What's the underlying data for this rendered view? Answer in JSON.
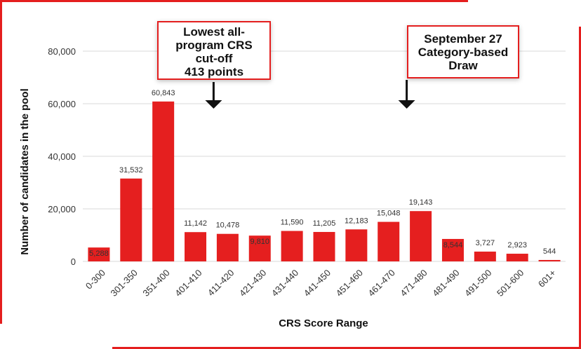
{
  "colors": {
    "bar": "#e51f1f",
    "frame": "#e41e1e",
    "grid": "#d9d9d9",
    "tick_text": "#333333",
    "axis_title": "#111111"
  },
  "chart_data": {
    "type": "bar",
    "categories": [
      "0-300",
      "301-350",
      "351-400",
      "401-410",
      "411-420",
      "421-430",
      "431-440",
      "441-450",
      "451-460",
      "461-470",
      "471-480",
      "481-490",
      "491-500",
      "501-600",
      "601+"
    ],
    "values": [
      5288,
      31532,
      60843,
      11142,
      10478,
      9810,
      11590,
      11205,
      12183,
      15048,
      19143,
      8544,
      3727,
      2923,
      544
    ],
    "value_labels": [
      "5,288",
      "31,532",
      "60,843",
      "11,142",
      "10,478",
      "9,810",
      "11,590",
      "11,205",
      "12,183",
      "15,048",
      "19,143",
      "8,544",
      "3,727",
      "2,923",
      "544"
    ],
    "inside_label_indices": [
      0,
      5,
      11
    ],
    "xlabel": "CRS Score Range",
    "ylabel": "Number of candidates in the pool",
    "ylim": [
      0,
      80000
    ],
    "yticks": [
      0,
      20000,
      40000,
      60000,
      80000
    ],
    "ytick_labels": [
      "0",
      "20,000",
      "40,000",
      "60,000",
      "80,000"
    ],
    "grid": true,
    "annotations": [
      {
        "lines": [
          "Lowest all-",
          "program CRS",
          "cut-off",
          "413 points"
        ],
        "points_to_category": "411-420"
      },
      {
        "lines": [
          "September 27",
          "Category-based",
          "Draw"
        ],
        "points_to_category": "471-480"
      }
    ]
  }
}
